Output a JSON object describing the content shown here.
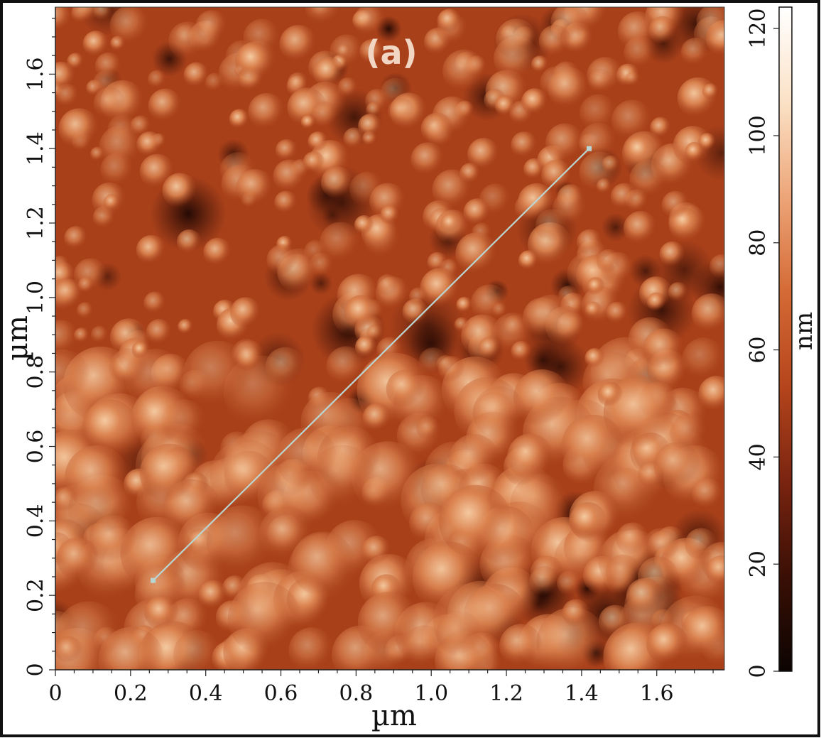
{
  "chart_data": {
    "type": "heatmap",
    "panel_label": "(a)",
    "xlabel": "µm",
    "ylabel": "µm",
    "xlim": [
      0,
      1.78
    ],
    "ylim": [
      0,
      1.78
    ],
    "x_ticks": [
      {
        "value": 0,
        "label": "0"
      },
      {
        "value": 0.2,
        "label": "0.2"
      },
      {
        "value": 0.4,
        "label": "0.4"
      },
      {
        "value": 0.6,
        "label": "0.6"
      },
      {
        "value": 0.8,
        "label": "0.8"
      },
      {
        "value": 1.0,
        "label": "1.0"
      },
      {
        "value": 1.2,
        "label": "1.2"
      },
      {
        "value": 1.4,
        "label": "1.4"
      },
      {
        "value": 1.6,
        "label": "1.6"
      }
    ],
    "y_ticks": [
      {
        "value": 0,
        "label": "0"
      },
      {
        "value": 0.2,
        "label": "0.2"
      },
      {
        "value": 0.4,
        "label": "0.4"
      },
      {
        "value": 0.6,
        "label": "0.6"
      },
      {
        "value": 0.8,
        "label": "0.8"
      },
      {
        "value": 1.0,
        "label": "1.0"
      },
      {
        "value": 1.2,
        "label": "1.2"
      },
      {
        "value": 1.4,
        "label": "1.4"
      },
      {
        "value": 1.6,
        "label": "1.6"
      }
    ],
    "colorbar": {
      "label": "nm",
      "range": [
        0,
        124
      ],
      "ticks": [
        {
          "value": 0,
          "label": "0"
        },
        {
          "value": 20,
          "label": "20"
        },
        {
          "value": 40,
          "label": "40"
        },
        {
          "value": 60,
          "label": "60"
        },
        {
          "value": 80,
          "label": "80"
        },
        {
          "value": 100,
          "label": "100"
        },
        {
          "value": 120,
          "label": "120"
        }
      ],
      "colors": [
        "#0c0402",
        "#3a0f05",
        "#7a2410",
        "#b5451c",
        "#d46a35",
        "#eda578",
        "#fbe2c6",
        "#ffffff"
      ]
    },
    "profile_line": {
      "start": {
        "x": 0.26,
        "y": 0.24
      },
      "end": {
        "x": 1.42,
        "y": 1.4
      },
      "color": "#b9d6d2"
    },
    "surface_colors": {
      "base": "#a8401a",
      "dark": "#3a0f05",
      "bright": "#f3bf96"
    }
  }
}
